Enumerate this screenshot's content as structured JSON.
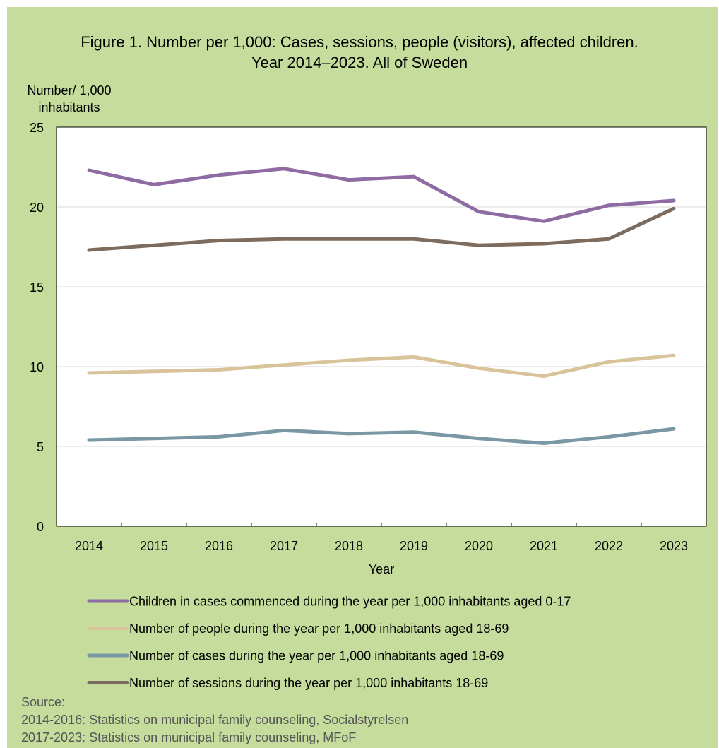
{
  "chart_data": {
    "type": "line",
    "title_lines": [
      "Figure 1. Number per 1,000:  Cases, sessions, people (visitors), affected children.",
      "Year 2014–2023. All of Sweden"
    ],
    "ylabel_lines": [
      "Number/ 1,000",
      "inhabitants"
    ],
    "xlabel": "Year",
    "ylim": [
      0,
      25
    ],
    "yticks": [
      "0",
      "5",
      "10",
      "15",
      "20",
      "25"
    ],
    "categories": [
      "2014",
      "2015",
      "2016",
      "2017",
      "2018",
      "2019",
      "2020",
      "2021",
      "2022",
      "2023"
    ],
    "grid": "horizontal",
    "legend_position": "bottom",
    "series": [
      {
        "name": "Children in cases commenced during the year per 1,000 inhabitants aged 0-17",
        "color": "#8e6ba3",
        "values": [
          22.3,
          21.4,
          22.0,
          22.4,
          21.7,
          21.9,
          19.7,
          19.1,
          20.1,
          20.4
        ]
      },
      {
        "name": "Number of people during the year per 1,000 inhabitants aged 18-69",
        "color": "#d9c39a",
        "values": [
          9.6,
          9.7,
          9.8,
          10.1,
          10.4,
          10.6,
          9.9,
          9.4,
          10.3,
          10.7
        ]
      },
      {
        "name": "Number of cases during the year per 1,000 inhabitants aged 18-69",
        "color": "#7a98a4",
        "values": [
          5.4,
          5.5,
          5.6,
          6.0,
          5.8,
          5.9,
          5.5,
          5.2,
          5.6,
          6.1
        ]
      },
      {
        "name": "Number of sessions during the year per 1,000 inhabitants 18-69",
        "color": "#7d6b5d",
        "values": [
          17.3,
          17.6,
          17.9,
          18.0,
          18.0,
          18.0,
          17.6,
          17.7,
          18.0,
          19.9
        ]
      }
    ]
  },
  "source": {
    "label": "Source:",
    "lines": [
      "2014-2016: Statistics on municipal family counseling, Socialstyrelsen",
      "2017-2023: Statistics on municipal family counseling, MFoF"
    ]
  }
}
